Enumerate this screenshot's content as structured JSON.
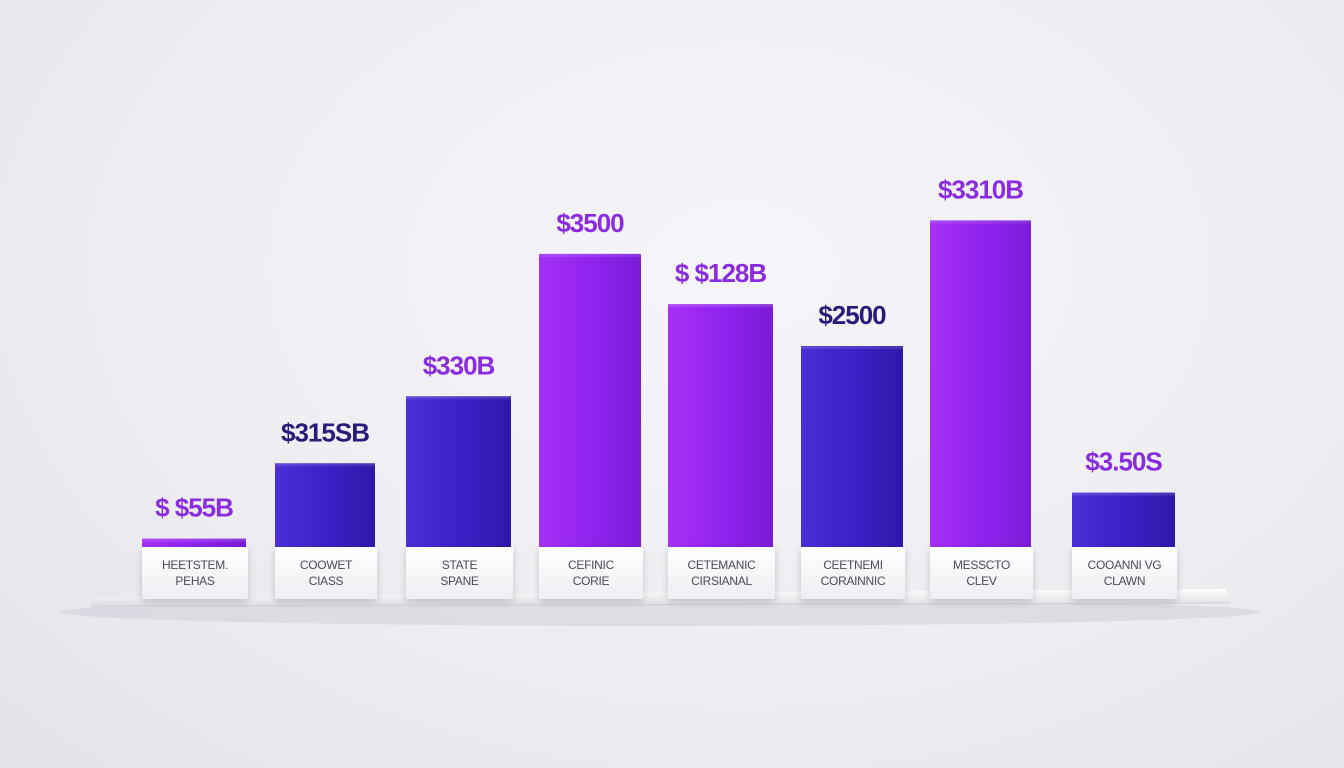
{
  "chart_data": {
    "type": "bar",
    "title": "",
    "xlabel": "",
    "ylabel": "",
    "grid": false,
    "legend": "none",
    "categories": [
      [
        "HEETSTEM.",
        "PEHAS"
      ],
      [
        "COOWET",
        "CIASS"
      ],
      [
        "STATE",
        "SPANE"
      ],
      [
        "CEFINIC",
        "CORIE"
      ],
      [
        "CETEMANIC",
        "CIRSIANAL"
      ],
      [
        "CEETNEMI",
        "CORAINNIC"
      ],
      [
        "MESSCTO",
        "CLEV"
      ],
      [
        "COOANNI VG",
        "CLAWN"
      ]
    ],
    "value_labels": [
      "$ $55B",
      "$315SB",
      "$330B",
      "$3500",
      "$ $128B",
      "$2500",
      "$3310B",
      "$3.50S"
    ],
    "values": [
      1,
      10,
      18,
      35,
      29,
      24,
      39,
      6.5
    ],
    "ylim": [
      0,
      40
    ],
    "colors": {
      "violet": "#9c28f0",
      "indigo": "#3e22c9",
      "label_violet": "#8a2be2",
      "label_navy": "#2a1a7a",
      "category_text": "#4a4a5a"
    },
    "bar_styles": [
      "violet",
      "indigo",
      "indigo",
      "violet",
      "violet",
      "indigo",
      "violet",
      "indigo"
    ],
    "label_styles": [
      "violet",
      "navy",
      "violet",
      "violet",
      "violet",
      "navy",
      "violet",
      "violet"
    ]
  }
}
